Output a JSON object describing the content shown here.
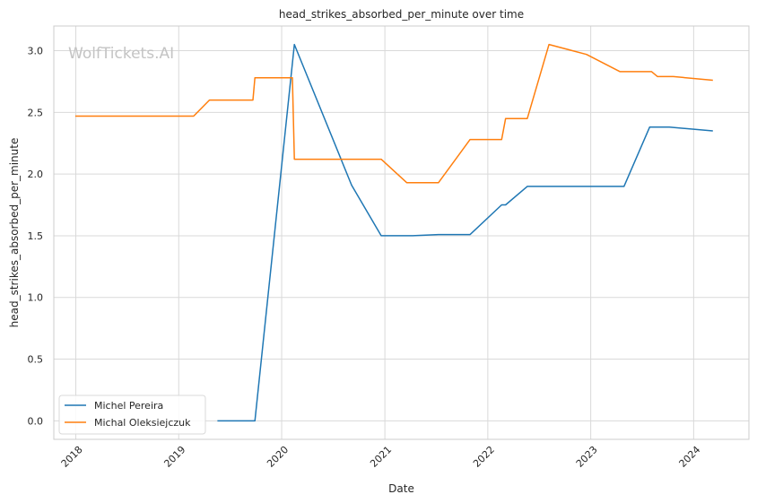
{
  "chart_data": {
    "type": "line",
    "title": "head_strikes_absorbed_per_minute over time",
    "xlabel": "Date",
    "ylabel": "head_strikes_absorbed_per_minute",
    "watermark": "WolfTickets.AI",
    "x_type": "date",
    "xlim": [
      "2017-10-15",
      "2024-07-15"
    ],
    "ylim": [
      -0.15,
      3.2
    ],
    "x_ticks": [
      "2018",
      "2019",
      "2020",
      "2021",
      "2022",
      "2023",
      "2024"
    ],
    "y_ticks": [
      "0.0",
      "0.5",
      "1.0",
      "1.5",
      "2.0",
      "2.5",
      "3.0"
    ],
    "grid": true,
    "legend_position": "lower-left",
    "series": [
      {
        "name": "Michel Pereira",
        "color": "#1f77b4",
        "points": [
          {
            "x": "2019-05-18",
            "y": 0.0
          },
          {
            "x": "2019-09-28",
            "y": 0.0
          },
          {
            "x": "2020-02-15",
            "y": 3.05
          },
          {
            "x": "2020-09-05",
            "y": 1.91
          },
          {
            "x": "2020-12-19",
            "y": 1.5
          },
          {
            "x": "2021-04-10",
            "y": 1.5
          },
          {
            "x": "2021-07-10",
            "y": 1.51
          },
          {
            "x": "2021-10-30",
            "y": 1.51
          },
          {
            "x": "2022-02-19",
            "y": 1.75
          },
          {
            "x": "2022-03-05",
            "y": 1.75
          },
          {
            "x": "2022-05-21",
            "y": 1.9
          },
          {
            "x": "2023-04-29",
            "y": 1.9
          },
          {
            "x": "2023-07-29",
            "y": 2.38
          },
          {
            "x": "2023-10-07",
            "y": 2.38
          },
          {
            "x": "2024-03-09",
            "y": 2.35
          }
        ]
      },
      {
        "name": "Michal Oleksiejczuk",
        "color": "#ff7f0e",
        "points": [
          {
            "x": "2017-12-30",
            "y": 2.47
          },
          {
            "x": "2019-02-23",
            "y": 2.47
          },
          {
            "x": "2019-04-20",
            "y": 2.6
          },
          {
            "x": "2019-09-21",
            "y": 2.6
          },
          {
            "x": "2019-09-28",
            "y": 2.78
          },
          {
            "x": "2020-02-08",
            "y": 2.78
          },
          {
            "x": "2020-02-15",
            "y": 2.12
          },
          {
            "x": "2020-12-19",
            "y": 2.12
          },
          {
            "x": "2021-03-20",
            "y": 1.93
          },
          {
            "x": "2021-07-10",
            "y": 1.93
          },
          {
            "x": "2021-10-30",
            "y": 2.28
          },
          {
            "x": "2022-02-19",
            "y": 2.28
          },
          {
            "x": "2022-03-05",
            "y": 2.45
          },
          {
            "x": "2022-05-21",
            "y": 2.45
          },
          {
            "x": "2022-08-06",
            "y": 3.05
          },
          {
            "x": "2022-12-17",
            "y": 2.97
          },
          {
            "x": "2023-04-15",
            "y": 2.83
          },
          {
            "x": "2023-08-05",
            "y": 2.83
          },
          {
            "x": "2023-08-26",
            "y": 2.79
          },
          {
            "x": "2023-10-21",
            "y": 2.79
          },
          {
            "x": "2024-03-09",
            "y": 2.76
          }
        ]
      }
    ]
  }
}
